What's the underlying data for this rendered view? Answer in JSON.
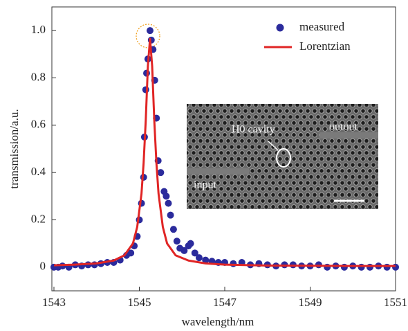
{
  "chart_data": {
    "type": "scatter",
    "xlabel": "wavelength/nm",
    "ylabel": "transmission/a.u.",
    "xlim": [
      1543,
      1551
    ],
    "ylim": [
      -0.1,
      1.1
    ],
    "xticks": [
      1543,
      1545,
      1547,
      1549,
      1551
    ],
    "yticks": [
      0,
      0.2,
      0.4,
      0.6,
      0.8,
      {
        "value": 1,
        "label": "1.0"
      }
    ],
    "legend": "upper right",
    "annotations": [
      "H0 cavity",
      "outout",
      "input"
    ],
    "series": [
      {
        "name": "measured",
        "type": "scatter",
        "color": "#2b2b9c",
        "x": [
          1543.0,
          1543.1,
          1543.2,
          1543.35,
          1543.5,
          1543.65,
          1543.8,
          1543.95,
          1544.1,
          1544.25,
          1544.4,
          1544.55,
          1544.7,
          1544.8,
          1544.88,
          1544.95,
          1545.0,
          1545.05,
          1545.1,
          1545.12,
          1545.15,
          1545.17,
          1545.2,
          1545.25,
          1545.28,
          1545.32,
          1545.36,
          1545.4,
          1545.44,
          1545.5,
          1545.58,
          1545.63,
          1545.68,
          1545.73,
          1545.8,
          1545.88,
          1545.95,
          1546.05,
          1546.15,
          1546.2,
          1546.3,
          1546.4,
          1546.55,
          1546.7,
          1546.85,
          1547.0,
          1547.2,
          1547.4,
          1547.6,
          1547.8,
          1548.0,
          1548.2,
          1548.4,
          1548.6,
          1548.8,
          1549.0,
          1549.2,
          1549.4,
          1549.6,
          1549.8,
          1550.0,
          1550.2,
          1550.4,
          1550.6,
          1550.8,
          1551.0
        ],
        "values": [
          0.0,
          0.0,
          0.005,
          0.0,
          0.01,
          0.005,
          0.01,
          0.01,
          0.015,
          0.02,
          0.02,
          0.03,
          0.05,
          0.06,
          0.09,
          0.13,
          0.2,
          0.27,
          0.38,
          0.55,
          0.75,
          0.82,
          0.88,
          1.0,
          0.96,
          0.92,
          0.79,
          0.63,
          0.45,
          0.4,
          0.32,
          0.3,
          0.27,
          0.22,
          0.16,
          0.11,
          0.08,
          0.07,
          0.09,
          0.1,
          0.06,
          0.04,
          0.03,
          0.025,
          0.02,
          0.02,
          0.015,
          0.02,
          0.01,
          0.015,
          0.01,
          0.005,
          0.01,
          0.01,
          0.005,
          0.005,
          0.01,
          0.0,
          0.005,
          0.0,
          0.005,
          0.0,
          0.0,
          0.005,
          0.0,
          0.0
        ]
      },
      {
        "name": "Lorentzian",
        "type": "line",
        "color": "#e02525",
        "x": [
          1543,
          1543.5,
          1544,
          1544.4,
          1544.65,
          1544.85,
          1544.95,
          1545.05,
          1545.1,
          1545.15,
          1545.2,
          1545.25,
          1545.3,
          1545.35,
          1545.4,
          1545.45,
          1545.55,
          1545.65,
          1545.85,
          1546.15,
          1546.55,
          1547,
          1548,
          1549,
          1550,
          1551
        ],
        "values": [
          0.008,
          0.011,
          0.016,
          0.028,
          0.05,
          0.1,
          0.17,
          0.31,
          0.44,
          0.62,
          0.85,
          0.965,
          0.85,
          0.62,
          0.44,
          0.31,
          0.17,
          0.1,
          0.05,
          0.028,
          0.016,
          0.011,
          0.007,
          0.006,
          0.005,
          0.005
        ]
      }
    ]
  }
}
